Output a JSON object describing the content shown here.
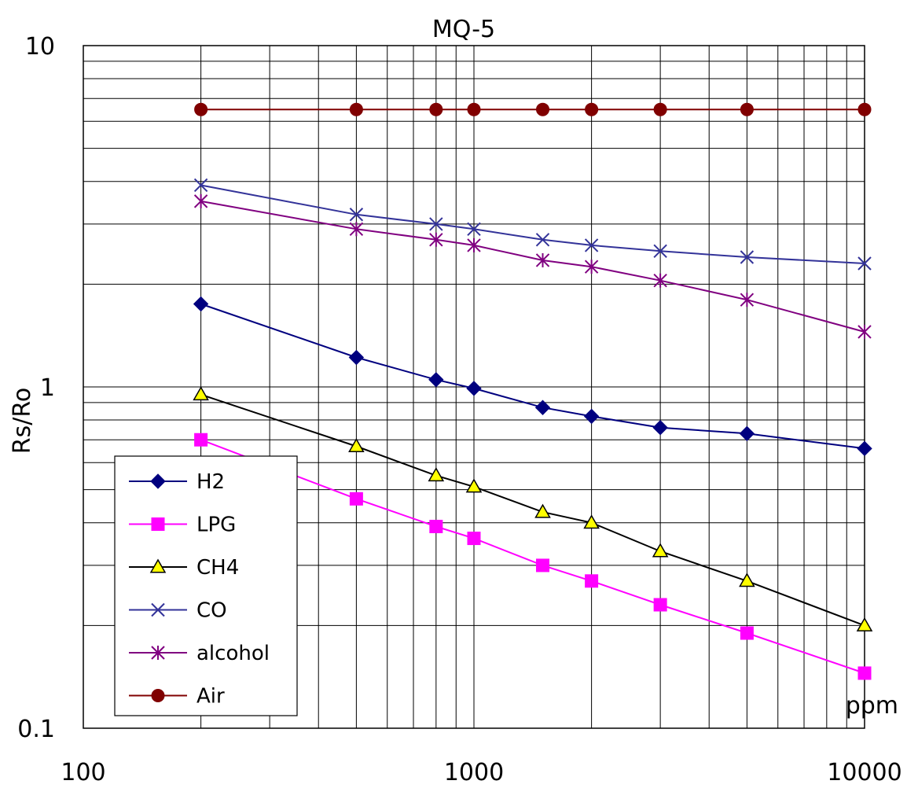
{
  "chart_data": {
    "type": "line",
    "title": "MQ-5",
    "xlabel": "",
    "ylabel": "Rs/Ro",
    "x_unit": "ppm",
    "xscale": "log",
    "yscale": "log",
    "xlim": [
      100,
      10000
    ],
    "ylim": [
      0.1,
      10
    ],
    "grid": true,
    "legend_position": "bottom-left",
    "x_ticks": [
      {
        "value": 100,
        "label": "100"
      },
      {
        "value": 1000,
        "label": "1000"
      },
      {
        "value": 10000,
        "label": "10000"
      }
    ],
    "y_ticks": [
      {
        "value": 10,
        "label": "10"
      },
      {
        "value": 1,
        "label": "1"
      },
      {
        "value": 0.1,
        "label": "0.1"
      }
    ],
    "x": [
      200,
      500,
      800,
      1000,
      1500,
      2000,
      3000,
      5000,
      10000
    ],
    "series": [
      {
        "name": "H2",
        "color": "#00007f",
        "marker": "diamond",
        "values": [
          1.75,
          1.22,
          1.05,
          0.99,
          0.87,
          0.82,
          0.76,
          0.73,
          0.66
        ]
      },
      {
        "name": "LPG",
        "color": "#ff00ff",
        "marker": "square",
        "values": [
          0.7,
          0.47,
          0.39,
          0.36,
          0.3,
          0.27,
          0.23,
          0.19,
          0.145
        ]
      },
      {
        "name": "CH4",
        "color": "#000000",
        "marker": "triangle",
        "values": [
          0.95,
          0.67,
          0.55,
          0.51,
          0.43,
          0.4,
          0.33,
          0.27,
          0.2
        ]
      },
      {
        "name": "CO",
        "color": "#333399",
        "marker": "x",
        "values": [
          3.9,
          3.2,
          3.0,
          2.9,
          2.7,
          2.6,
          2.5,
          2.4,
          2.3
        ]
      },
      {
        "name": "alcohol",
        "color": "#800080",
        "marker": "asterisk",
        "values": [
          3.5,
          2.9,
          2.7,
          2.6,
          2.35,
          2.25,
          2.05,
          1.8,
          1.45
        ]
      },
      {
        "name": "Air",
        "color": "#800000",
        "marker": "circle",
        "values": [
          6.5,
          6.5,
          6.5,
          6.5,
          6.5,
          6.5,
          6.5,
          6.5,
          6.5
        ]
      }
    ]
  }
}
